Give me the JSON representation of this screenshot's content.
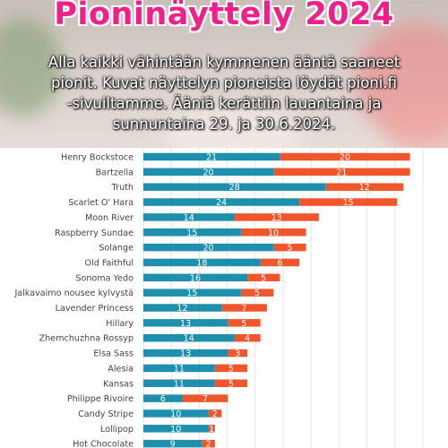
{
  "header": {
    "title": "Pioninäyttely 2024",
    "subtitle_lines": [
      "Alla kaikki vähintään kymmenen ääntä saaneet",
      "pionit. Kuvat näyttelyn pioneista löydät pioni.fi",
      "-sivuiltamme.  Ääniä kerättiin lauantaina ja",
      "sunnuntaina 29. ja 30.6.2024."
    ]
  },
  "chart_data": {
    "type": "bar",
    "orientation": "horizontal",
    "stacked": true,
    "categories": [
      "Henry Bockstoce",
      "Bartzella",
      "Truth",
      "Scarlet O' Hara",
      "Moon River",
      "Raspberry Sundae",
      "Solange",
      "Old Faithful",
      "Sonoma Yedo",
      "Jalkavaimo nousee kylvystä",
      "Lavender Princess",
      "Hillary",
      "Zhemchuzhna Rossyp",
      "Elsa Sass",
      "Alesia",
      "Kansas",
      "Philippe Rivoire",
      "Candy Stripe",
      "Lollipop",
      "Hot Chocolate"
    ],
    "series": [
      {
        "values": [
          21,
          20,
          28,
          24,
          14,
          15,
          20,
          18,
          16,
          15,
          12,
          13,
          14,
          13,
          11,
          11,
          6,
          10,
          10,
          9
        ],
        "color": "#1f8fae"
      },
      {
        "values": [
          20,
          21,
          12,
          15,
          13,
          10,
          5,
          6,
          5,
          5,
          7,
          5,
          4,
          3,
          5,
          5,
          7,
          2,
          1,
          2
        ],
        "color": "#f0562b"
      }
    ],
    "xlim": [
      0,
      43
    ],
    "grid": true,
    "data_labels": true
  }
}
